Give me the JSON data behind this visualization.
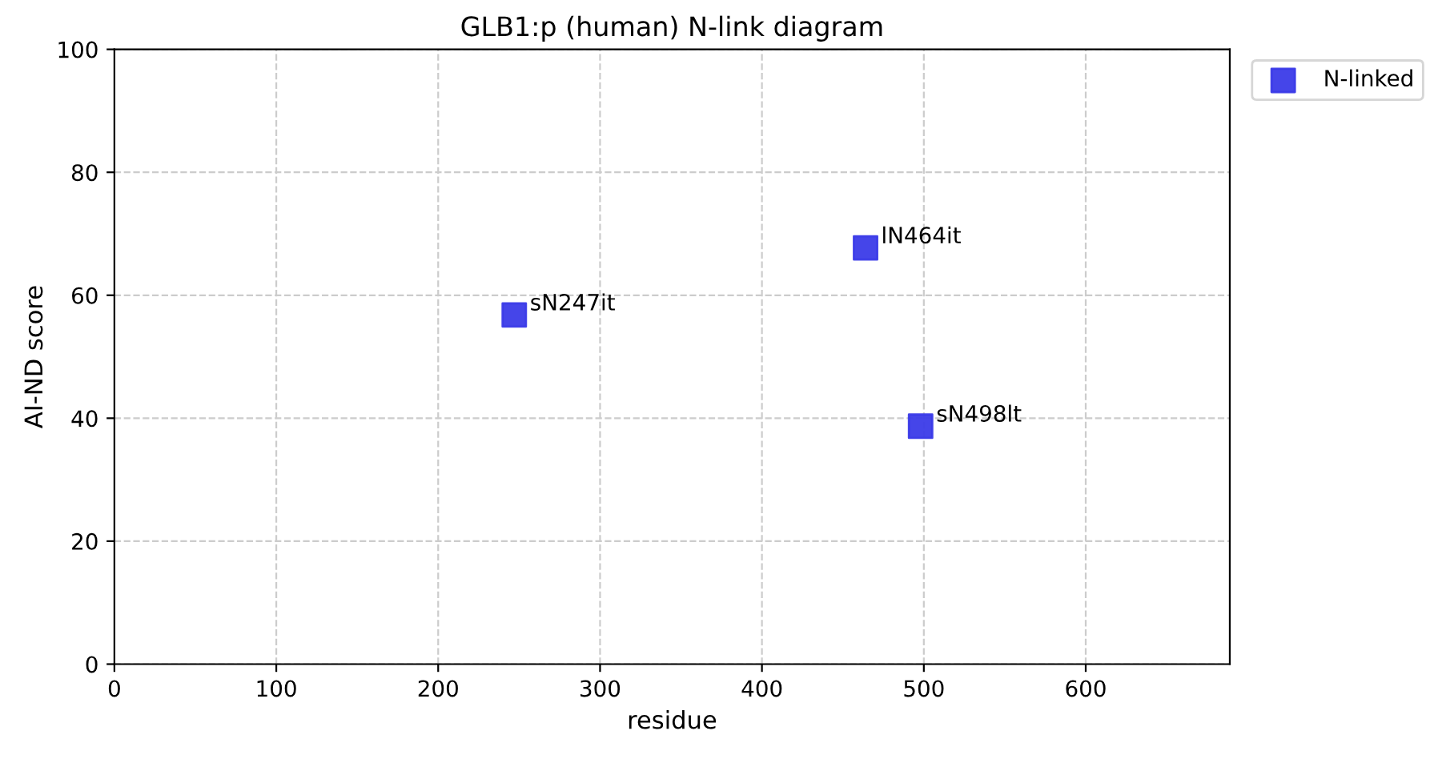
{
  "chart_data": {
    "type": "scatter",
    "title": "GLB1:p (human) N-link diagram",
    "xlabel": "residue",
    "ylabel": "AI-ND score",
    "x": [
      247,
      464,
      498
    ],
    "series": [
      {
        "name": "N-linked",
        "color": "#3b3be8",
        "values": [
          56.8,
          67.7,
          38.7
        ]
      }
    ],
    "annotations": [
      {
        "text": "sN247it",
        "x": 247,
        "y": 56.8
      },
      {
        "text": "lN464it",
        "x": 464,
        "y": 67.7
      },
      {
        "text": "sN498lt",
        "x": 498,
        "y": 38.7
      }
    ],
    "xlim": [
      0,
      689
    ],
    "xticks": [
      0,
      100,
      200,
      300,
      400,
      500,
      600
    ],
    "ylim": [
      0,
      100
    ],
    "yticks": [
      0,
      20,
      40,
      60,
      80,
      100
    ],
    "grid": true,
    "legend": "top right",
    "marker": "square"
  }
}
